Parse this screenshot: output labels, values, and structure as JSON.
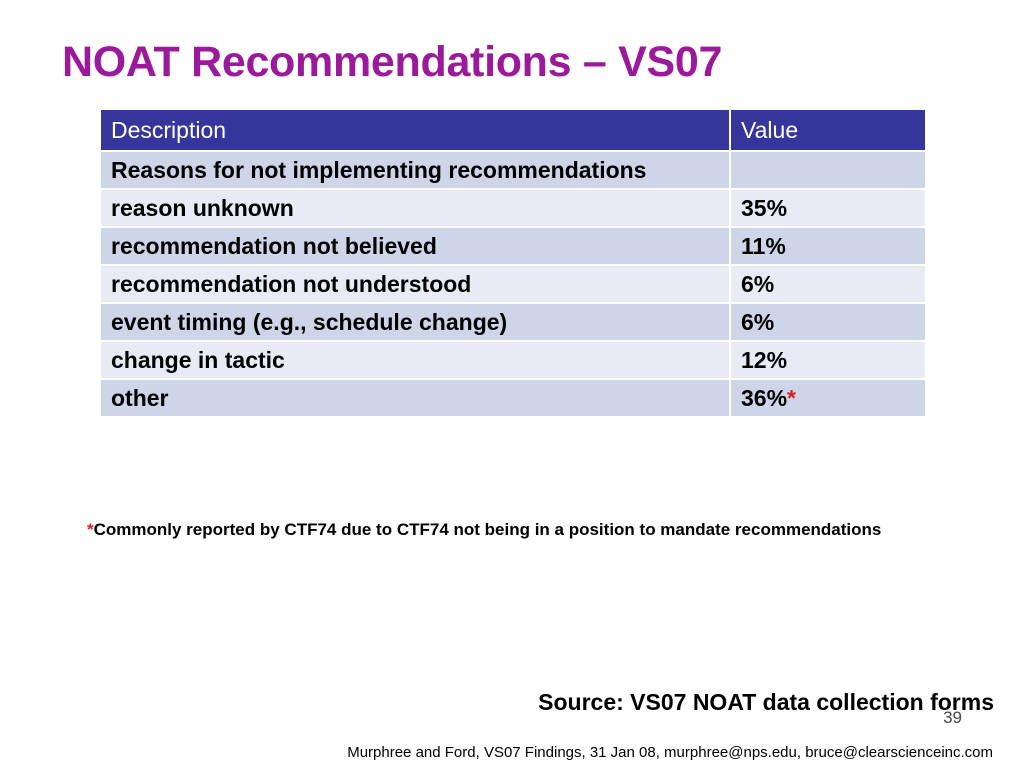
{
  "slide": {
    "title": "NOAT Recommendations – VS07"
  },
  "table": {
    "headers": [
      "Description",
      "Value"
    ],
    "group_label": "Reasons for not implementing recommendations",
    "rows": [
      {
        "description": "reason unknown",
        "value": "35%"
      },
      {
        "description": "recommendation not believed",
        "value": "11%"
      },
      {
        "description": "recommendation not understood",
        "value": "6%"
      },
      {
        "description": "event timing (e.g., schedule change)",
        "value": "6%"
      },
      {
        "description": "change in tactic",
        "value": "12%"
      },
      {
        "description": "other",
        "value": "36%",
        "marker": "*"
      }
    ]
  },
  "footnote": {
    "marker": "*",
    "text": "Commonly reported by CTF74 due to CTF74 not being in a position to mandate recommendations"
  },
  "source": "Source:  VS07 NOAT data collection forms",
  "page_number": "39",
  "credits": "Murphree and Ford, VS07 Findings, 31 Jan 08, murphree@nps.edu, bruce@clearscienceinc.com",
  "colors": {
    "title": "#9b1a9b",
    "header_bg": "#35359b",
    "band_a": "#cfd5e8",
    "band_b": "#e8ebf4",
    "marker": "#e8191a"
  }
}
